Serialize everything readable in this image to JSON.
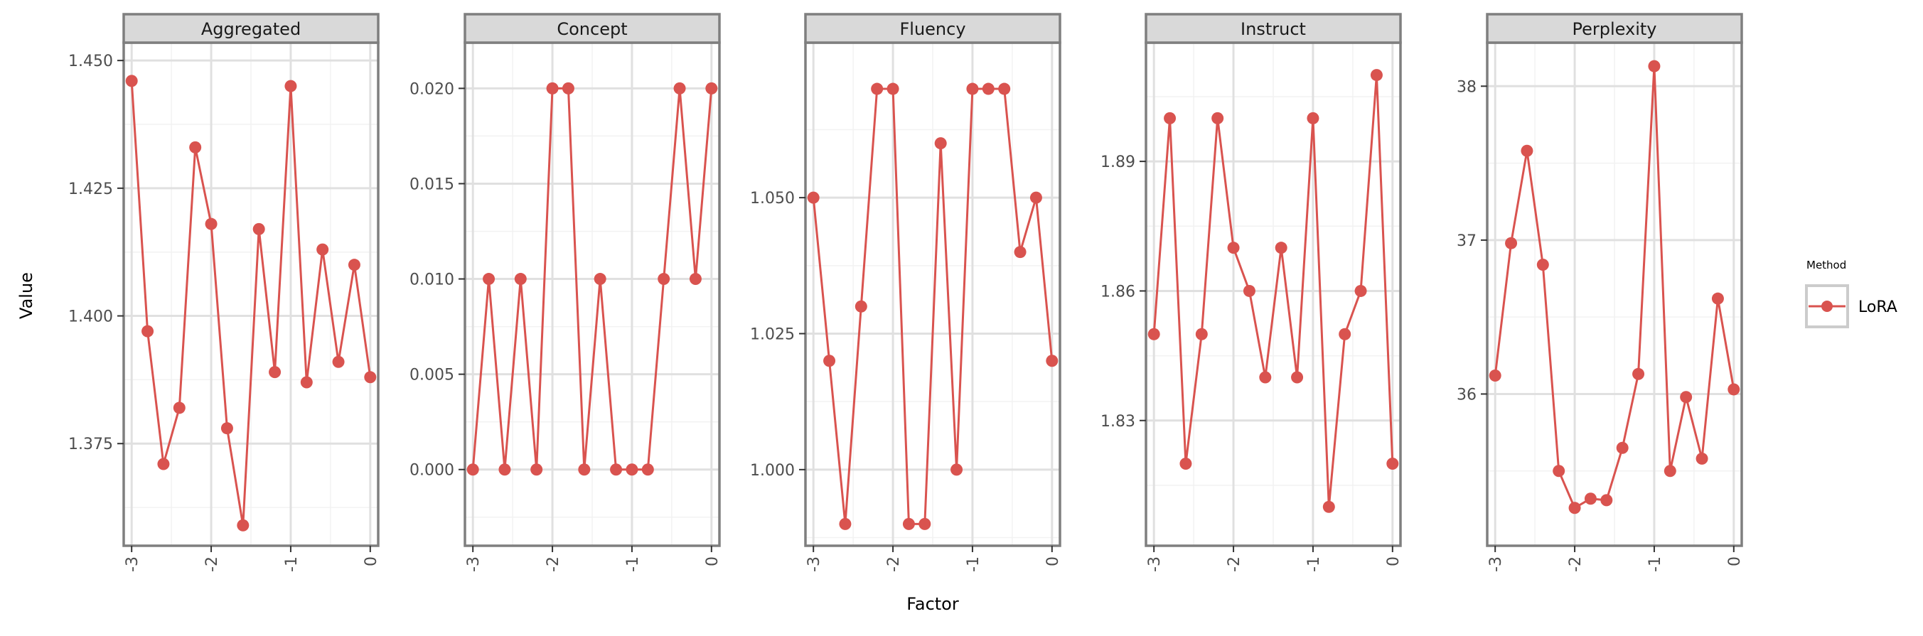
{
  "chart_data": {
    "type": "line",
    "faceted": true,
    "xlabel": "Factor",
    "ylabel": "Value",
    "x": [
      -3.0,
      -2.8,
      -2.6,
      -2.4,
      -2.2,
      -2.0,
      -1.8,
      -1.6,
      -1.4,
      -1.2,
      -1.0,
      -0.8,
      -0.6,
      -0.4,
      -0.2,
      0.0
    ],
    "x_ticks": [
      -3,
      -2,
      -1,
      0
    ],
    "x_tick_labels": [
      "-3",
      "-2",
      "-1",
      "0"
    ],
    "xlim": [
      -3.1,
      0.1
    ],
    "grid": true,
    "theme": "bw",
    "legend": {
      "title": "Method",
      "position": "right",
      "entries": [
        {
          "label": "LoRA",
          "color": "#d9534f"
        }
      ]
    },
    "series_color": "#d9534f",
    "facets": [
      {
        "name": "Aggregated",
        "ylim": [
          1.355,
          1.4535
        ],
        "y_ticks": [
          1.375,
          1.4,
          1.425,
          1.45
        ],
        "y_tick_labels": [
          "1.375",
          "1.400",
          "1.425",
          "1.450"
        ],
        "series": [
          {
            "name": "LoRA",
            "values": [
              1.446,
              1.397,
              1.371,
              1.382,
              1.433,
              1.418,
              1.378,
              1.359,
              1.417,
              1.389,
              1.445,
              1.387,
              1.413,
              1.391,
              1.41,
              1.388
            ]
          }
        ]
      },
      {
        "name": "Concept",
        "ylim": [
          -0.004,
          0.0224
        ],
        "y_ticks": [
          0.0,
          0.005,
          0.01,
          0.015,
          0.02
        ],
        "y_tick_labels": [
          "0.000",
          "0.005",
          "0.010",
          "0.015",
          "0.020"
        ],
        "series": [
          {
            "name": "LoRA",
            "values": [
              0.0,
              0.01,
              0.0,
              0.01,
              0.0,
              0.02,
              0.02,
              0.0,
              0.01,
              0.0,
              0.0,
              0.0,
              0.01,
              0.02,
              0.01,
              0.02
            ]
          }
        ]
      },
      {
        "name": "Fluency",
        "ylim": [
          0.986,
          1.0785
        ],
        "y_ticks": [
          1.0,
          1.025,
          1.05
        ],
        "y_tick_labels": [
          "1.000",
          "1.025",
          "1.050"
        ],
        "series": [
          {
            "name": "LoRA",
            "values": [
              1.05,
              1.02,
              0.99,
              1.03,
              1.07,
              1.07,
              0.99,
              0.99,
              1.06,
              1.0,
              1.07,
              1.07,
              1.07,
              1.04,
              1.05,
              1.02
            ]
          }
        ]
      },
      {
        "name": "Instruct",
        "ylim": [
          1.801,
          1.9175
        ],
        "y_ticks": [
          1.83,
          1.86,
          1.89
        ],
        "y_tick_labels": [
          "1.83",
          "1.86",
          "1.89"
        ],
        "series": [
          {
            "name": "LoRA",
            "values": [
              1.85,
              1.9,
              1.82,
              1.85,
              1.9,
              1.87,
              1.86,
              1.84,
              1.87,
              1.84,
              1.9,
              1.81,
              1.85,
              1.86,
              1.91,
              1.82
            ]
          }
        ]
      },
      {
        "name": "Perplexity",
        "ylim": [
          35.014,
          38.283
        ],
        "y_ticks": [
          36,
          37,
          38
        ],
        "y_tick_labels": [
          "36",
          "37",
          "38"
        ],
        "series": [
          {
            "name": "LoRA",
            "values": [
              36.12,
              36.98,
              37.58,
              36.84,
              35.5,
              35.26,
              35.32,
              35.31,
              35.65,
              36.13,
              38.13,
              35.5,
              35.98,
              35.58,
              36.62,
              36.03
            ]
          }
        ]
      }
    ]
  }
}
